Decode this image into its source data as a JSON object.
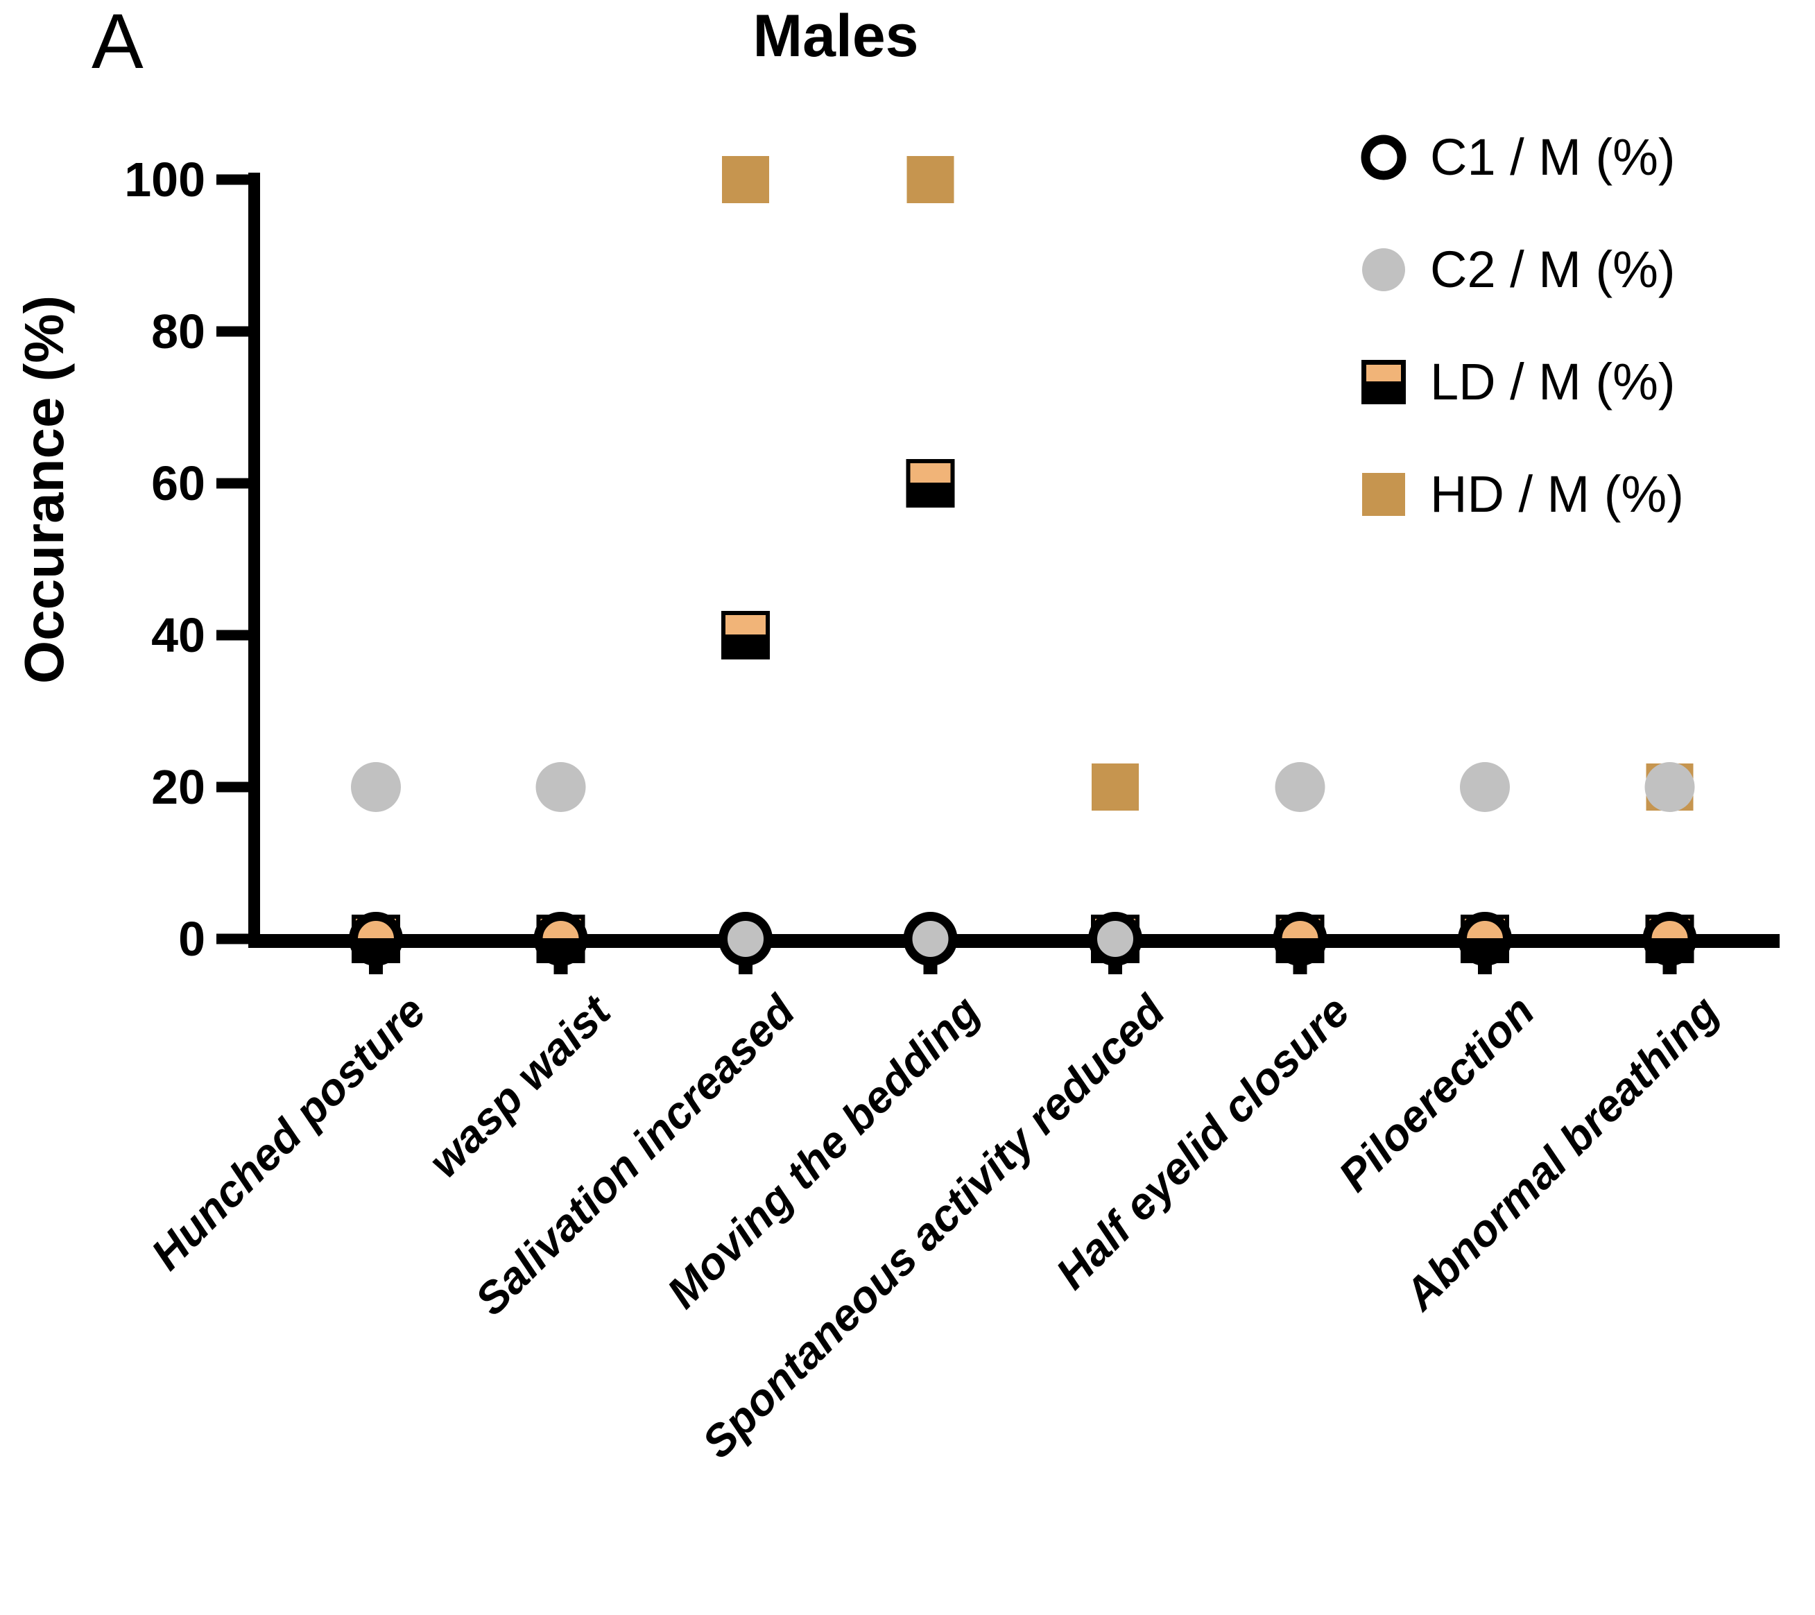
{
  "panel_label": "A",
  "title": "Males",
  "y_axis": {
    "label": "Occurance (%)",
    "ticks": [
      0,
      20,
      40,
      60,
      80,
      100
    ]
  },
  "legend": [
    {
      "key": "C1",
      "label": "C1 / M (%)",
      "marker": "open-circle"
    },
    {
      "key": "C2",
      "label": "C2 / M (%)",
      "marker": "gray-circle"
    },
    {
      "key": "LD",
      "label": "LD / M (%)",
      "marker": "half-filled-square"
    },
    {
      "key": "HD",
      "label": "HD / M (%)",
      "marker": "filled-square"
    }
  ],
  "colors": {
    "axis": "#000000",
    "c1_stroke": "#000000",
    "c1_fill": "none",
    "c2_fill": "#C1C1C1",
    "ld_top": "#F1B478",
    "ld_bottom": "#000000",
    "hd_fill": "#C6954F",
    "text": "#000000"
  },
  "chart_data": {
    "type": "scatter",
    "title": "Males",
    "xlabel": "",
    "ylabel": "Occurance (%)",
    "ylim": [
      0,
      100
    ],
    "yticks": [
      0,
      20,
      40,
      60,
      80,
      100
    ],
    "grid": false,
    "legend_position": "top-right",
    "categories": [
      "Hunched posture",
      "wasp waist",
      "Salivation increased",
      "Moving the bedding",
      "Spontaneous activity reduced",
      "Half eyelid closure",
      "Piloerection",
      "Abnormal breathing"
    ],
    "series": [
      {
        "name": "C1 / M (%)",
        "marker": "open-circle",
        "values": [
          0,
          0,
          0,
          0,
          0,
          0,
          0,
          0
        ]
      },
      {
        "name": "C2 / M (%)",
        "marker": "gray-circle",
        "values": [
          20,
          20,
          0,
          0,
          0,
          20,
          20,
          20
        ]
      },
      {
        "name": "LD / M (%)",
        "marker": "half-filled-square",
        "values": [
          0,
          0,
          40,
          60,
          0,
          0,
          0,
          0
        ]
      },
      {
        "name": "HD / M (%)",
        "marker": "filled-square",
        "values": [
          0,
          0,
          100,
          100,
          20,
          0,
          0,
          20
        ]
      }
    ]
  }
}
